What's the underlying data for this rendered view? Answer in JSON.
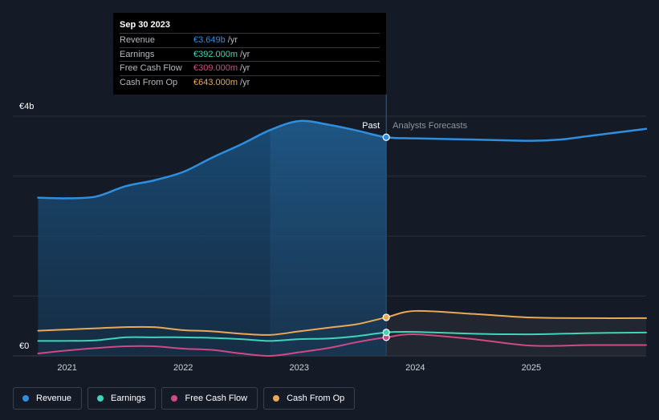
{
  "chart_data": {
    "type": "line",
    "x_range": [
      2020.75,
      2025.99
    ],
    "y_range": [
      0,
      4
    ],
    "y_ticks": [
      {
        "value": 4,
        "label": "€4b"
      },
      {
        "value": 0,
        "label": "€0"
      }
    ],
    "x_ticks": [
      {
        "value": 2021,
        "label": "2021"
      },
      {
        "value": 2022,
        "label": "2022"
      },
      {
        "value": 2023,
        "label": "2023"
      },
      {
        "value": 2024,
        "label": "2024"
      },
      {
        "value": 2025,
        "label": "2025"
      }
    ],
    "divider": {
      "x": 2023.75,
      "past_label": "Past",
      "forecast_label": "Analysts Forecasts"
    },
    "series": [
      {
        "name": "Revenue",
        "color": "#2f8fde",
        "points": [
          [
            2020.75,
            2.64
          ],
          [
            2021.0,
            2.63
          ],
          [
            2021.25,
            2.66
          ],
          [
            2021.5,
            2.83
          ],
          [
            2021.75,
            2.93
          ],
          [
            2022.0,
            3.07
          ],
          [
            2022.25,
            3.31
          ],
          [
            2022.5,
            3.53
          ],
          [
            2022.75,
            3.77
          ],
          [
            2023.0,
            3.92
          ],
          [
            2023.25,
            3.86
          ],
          [
            2023.5,
            3.76
          ],
          [
            2023.75,
            3.649
          ],
          [
            2024.0,
            3.63
          ],
          [
            2024.5,
            3.61
          ],
          [
            2025.0,
            3.59
          ],
          [
            2025.25,
            3.61
          ],
          [
            2025.5,
            3.67
          ],
          [
            2025.99,
            3.79
          ]
        ]
      },
      {
        "name": "Earnings",
        "color": "#3fd5b8",
        "points": [
          [
            2020.75,
            0.25
          ],
          [
            2021.0,
            0.25
          ],
          [
            2021.25,
            0.26
          ],
          [
            2021.5,
            0.31
          ],
          [
            2021.75,
            0.31
          ],
          [
            2022.0,
            0.31
          ],
          [
            2022.25,
            0.3
          ],
          [
            2022.5,
            0.28
          ],
          [
            2022.75,
            0.25
          ],
          [
            2023.0,
            0.28
          ],
          [
            2023.25,
            0.29
          ],
          [
            2023.5,
            0.33
          ],
          [
            2023.75,
            0.392
          ],
          [
            2024.0,
            0.4
          ],
          [
            2024.5,
            0.37
          ],
          [
            2025.0,
            0.36
          ],
          [
            2025.5,
            0.38
          ],
          [
            2025.99,
            0.39
          ]
        ]
      },
      {
        "name": "Free Cash Flow",
        "color": "#cf4a83",
        "points": [
          [
            2020.75,
            0.04
          ],
          [
            2021.0,
            0.09
          ],
          [
            2021.25,
            0.13
          ],
          [
            2021.5,
            0.16
          ],
          [
            2021.75,
            0.16
          ],
          [
            2022.0,
            0.12
          ],
          [
            2022.25,
            0.1
          ],
          [
            2022.5,
            0.04
          ],
          [
            2022.75,
            0.0
          ],
          [
            2023.0,
            0.06
          ],
          [
            2023.25,
            0.13
          ],
          [
            2023.5,
            0.23
          ],
          [
            2023.75,
            0.309
          ],
          [
            2024.0,
            0.36
          ],
          [
            2024.5,
            0.28
          ],
          [
            2025.0,
            0.17
          ],
          [
            2025.5,
            0.18
          ],
          [
            2025.99,
            0.18
          ]
        ]
      },
      {
        "name": "Cash From Op",
        "color": "#e9a956",
        "points": [
          [
            2020.75,
            0.42
          ],
          [
            2021.0,
            0.44
          ],
          [
            2021.25,
            0.46
          ],
          [
            2021.5,
            0.48
          ],
          [
            2021.75,
            0.48
          ],
          [
            2022.0,
            0.43
          ],
          [
            2022.25,
            0.41
          ],
          [
            2022.5,
            0.37
          ],
          [
            2022.75,
            0.35
          ],
          [
            2023.0,
            0.41
          ],
          [
            2023.25,
            0.47
          ],
          [
            2023.5,
            0.53
          ],
          [
            2023.75,
            0.643
          ],
          [
            2024.0,
            0.75
          ],
          [
            2024.5,
            0.7
          ],
          [
            2025.0,
            0.64
          ],
          [
            2025.5,
            0.63
          ],
          [
            2025.99,
            0.63
          ]
        ]
      }
    ]
  },
  "tooltip": {
    "date": "Sep 30 2023",
    "rows": [
      {
        "label": "Revenue",
        "value": "€3.649b",
        "unit": "/yr",
        "color": "#2f8fde"
      },
      {
        "label": "Earnings",
        "value": "€392.000m",
        "unit": "/yr",
        "color": "#3fd5b8"
      },
      {
        "label": "Free Cash Flow",
        "value": "€309.000m",
        "unit": "/yr",
        "color": "#cf4a83"
      },
      {
        "label": "Cash From Op",
        "value": "€643.000m",
        "unit": "/yr",
        "color": "#e9a956"
      }
    ]
  },
  "legend": [
    {
      "label": "Revenue",
      "color": "#2f8fde"
    },
    {
      "label": "Earnings",
      "color": "#3fd5b8"
    },
    {
      "label": "Free Cash Flow",
      "color": "#cf4a83"
    },
    {
      "label": "Cash From Op",
      "color": "#e9a956"
    }
  ]
}
